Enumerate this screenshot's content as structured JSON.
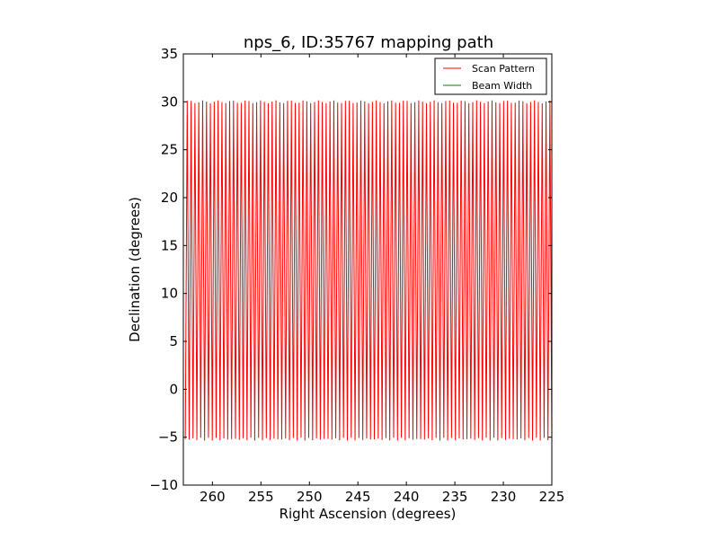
{
  "chart_data": {
    "type": "line",
    "title": "nps_6, ID:35767 mapping path",
    "xlabel": "Right Ascension (degrees)",
    "ylabel": "Declination (degrees)",
    "xlim": [
      263.0,
      225.0
    ],
    "ylim": [
      -10,
      35
    ],
    "xticks": [
      260,
      255,
      250,
      245,
      240,
      235,
      230,
      225
    ],
    "yticks": [
      -10,
      -5,
      0,
      5,
      10,
      15,
      20,
      25,
      30,
      35
    ],
    "grid": false,
    "legend_position": "top-right",
    "series": [
      {
        "name": "Scan Pattern",
        "color": "#ff0000",
        "pattern": "zigzag",
        "ra_start": 262.8,
        "ra_end": 225.0,
        "dec_min": -5.2,
        "dec_max": 30.0,
        "half_cycles": 190
      },
      {
        "name": "Beam Width",
        "color": "#008000",
        "points": []
      }
    ]
  }
}
